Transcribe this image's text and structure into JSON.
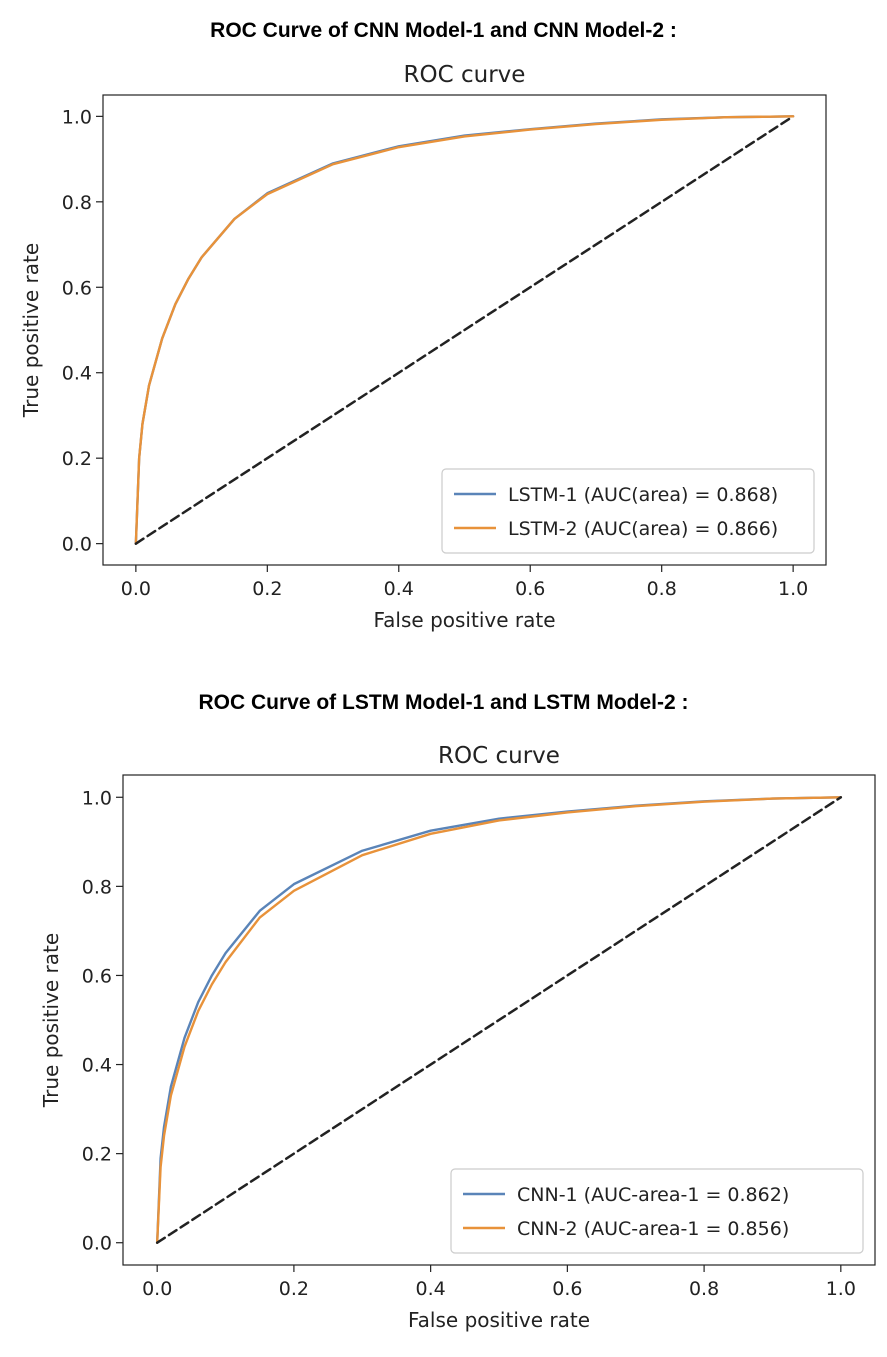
{
  "headings": {
    "first": "ROC Curve of CNN Model-1 and CNN Model-2 :",
    "second": "ROC Curve of LSTM Model-1 and LSTM Model-2 :"
  },
  "colors": {
    "blue": "#5a84b8",
    "orange": "#e8923a",
    "diagonal": "#222222"
  },
  "chart_data": [
    {
      "type": "line",
      "title": "ROC curve",
      "xlabel": "False positive rate",
      "ylabel": "True positive rate",
      "xlim": [
        -0.05,
        1.05
      ],
      "ylim": [
        -0.05,
        1.05
      ],
      "xticks": [
        "0.0",
        "0.2",
        "0.4",
        "0.6",
        "0.8",
        "1.0"
      ],
      "yticks": [
        "0.0",
        "0.2",
        "0.4",
        "0.6",
        "0.8",
        "1.0"
      ],
      "legend_position": "lower-right",
      "series": [
        {
          "name": "LSTM-1 (AUC(area) = 0.868)",
          "color": "#5a84b8",
          "x": [
            0,
            0.005,
            0.01,
            0.02,
            0.04,
            0.06,
            0.08,
            0.1,
            0.15,
            0.2,
            0.3,
            0.4,
            0.5,
            0.6,
            0.7,
            0.8,
            0.9,
            1.0
          ],
          "y": [
            0,
            0.2,
            0.28,
            0.37,
            0.48,
            0.56,
            0.62,
            0.67,
            0.76,
            0.82,
            0.89,
            0.93,
            0.955,
            0.97,
            0.983,
            0.993,
            0.998,
            1.0
          ]
        },
        {
          "name": "LSTM-2 (AUC(area) = 0.866)",
          "color": "#e8923a",
          "x": [
            0,
            0.005,
            0.01,
            0.02,
            0.04,
            0.06,
            0.08,
            0.1,
            0.15,
            0.2,
            0.3,
            0.4,
            0.5,
            0.6,
            0.7,
            0.8,
            0.9,
            1.0
          ],
          "y": [
            0,
            0.2,
            0.28,
            0.37,
            0.48,
            0.56,
            0.62,
            0.67,
            0.76,
            0.818,
            0.888,
            0.928,
            0.953,
            0.969,
            0.982,
            0.992,
            0.998,
            1.0
          ]
        },
        {
          "name": "",
          "color": "#222222",
          "dashed": true,
          "x": [
            0,
            1
          ],
          "y": [
            0,
            1
          ]
        }
      ]
    },
    {
      "type": "line",
      "title": "ROC curve",
      "xlabel": "False positive rate",
      "ylabel": "True positive rate",
      "xlim": [
        -0.05,
        1.05
      ],
      "ylim": [
        -0.05,
        1.05
      ],
      "xticks": [
        "0.0",
        "0.2",
        "0.4",
        "0.6",
        "0.8",
        "1.0"
      ],
      "yticks": [
        "0.0",
        "0.2",
        "0.4",
        "0.6",
        "0.8",
        "1.0"
      ],
      "legend_position": "lower-right",
      "series": [
        {
          "name": "CNN-1 (AUC-area-1 = 0.862)",
          "color": "#5a84b8",
          "x": [
            0,
            0.005,
            0.01,
            0.02,
            0.04,
            0.06,
            0.08,
            0.1,
            0.15,
            0.2,
            0.3,
            0.4,
            0.5,
            0.6,
            0.7,
            0.8,
            0.9,
            1.0
          ],
          "y": [
            0,
            0.19,
            0.26,
            0.35,
            0.46,
            0.54,
            0.6,
            0.65,
            0.745,
            0.805,
            0.88,
            0.925,
            0.952,
            0.968,
            0.981,
            0.991,
            0.997,
            1.0
          ]
        },
        {
          "name": "CNN-2 (AUC-area-1 = 0.856)",
          "color": "#e8923a",
          "x": [
            0,
            0.005,
            0.01,
            0.02,
            0.04,
            0.06,
            0.08,
            0.1,
            0.15,
            0.2,
            0.3,
            0.4,
            0.5,
            0.6,
            0.7,
            0.8,
            0.9,
            1.0
          ],
          "y": [
            0,
            0.17,
            0.24,
            0.33,
            0.44,
            0.52,
            0.58,
            0.63,
            0.73,
            0.79,
            0.87,
            0.918,
            0.948,
            0.966,
            0.98,
            0.99,
            0.997,
            1.0
          ]
        },
        {
          "name": "",
          "color": "#222222",
          "dashed": true,
          "x": [
            0,
            1
          ],
          "y": [
            0,
            1
          ]
        }
      ]
    }
  ]
}
